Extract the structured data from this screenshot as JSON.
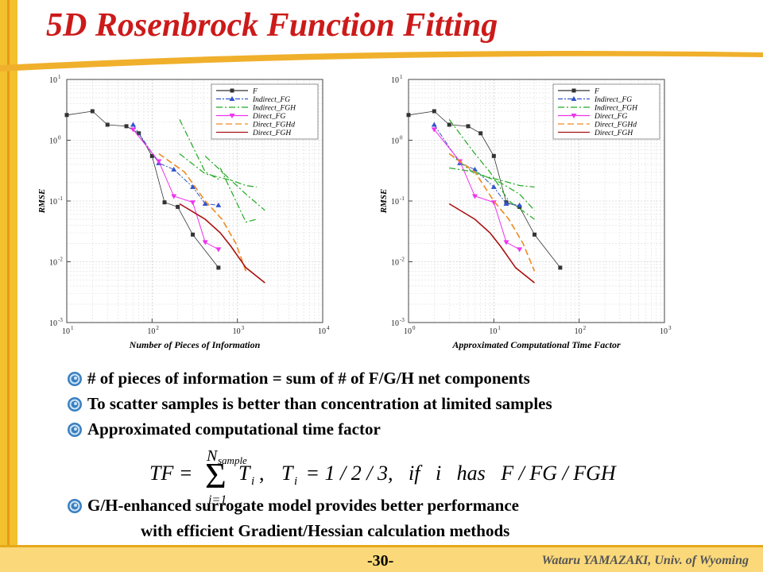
{
  "slide": {
    "title": "5D Rosenbrock Function Fitting",
    "page_number": "-30-",
    "author": "Wataru YAMAZAKI, Univ. of Wyoming",
    "bullets": [
      "# of pieces of information = sum of # of F/G/H net components",
      "To scatter samples is better than concentration at limited samples",
      "Approximated computational time factor",
      "G/H-enhanced surrogate model provides better performance"
    ],
    "bullet_continuation": "with efficient Gradient/Hessian calculation methods",
    "formula": {
      "lhs": "TF =",
      "sum_upper": "N",
      "sum_upper_sub": "sample",
      "sum_lower": "i=1",
      "term": "T",
      "term_sub": "i",
      "rest": "T",
      "rest_sub": "i",
      "rest_text": " = 1 / 2 / 3,   if   i   has   F / FG / FGH"
    },
    "colors": {
      "title": "#cc1a1a",
      "accent_bar": "#e8a317",
      "bullet_icon": "#3a7fc1"
    }
  },
  "chart_data": [
    {
      "type": "line",
      "xscale": "log",
      "yscale": "log",
      "xlim": [
        10,
        10000
      ],
      "ylim": [
        0.001,
        10
      ],
      "xlabel": "Number of Pieces of Information",
      "ylabel": "RMSE",
      "xticks": [
        {
          "v": 10,
          "m": "1"
        },
        {
          "v": 100,
          "m": "2"
        },
        {
          "v": 1000,
          "m": "3"
        },
        {
          "v": 10000,
          "m": "4"
        }
      ],
      "yticks": [
        {
          "v": 0.001,
          "m": "-3"
        },
        {
          "v": 0.01,
          "m": "-2"
        },
        {
          "v": 0.1,
          "m": "-1"
        },
        {
          "v": 1,
          "m": "0"
        },
        {
          "v": 10,
          "m": "1"
        }
      ],
      "legend_position": "top-right",
      "series": [
        {
          "name": "F",
          "color": "#333333",
          "dash": "none",
          "marker": "square",
          "width": 0.8,
          "x": [
            10,
            20,
            30,
            50,
            70,
            100,
            140,
            200,
            300,
            600
          ],
          "y": [
            2.6,
            3.0,
            1.8,
            1.7,
            1.3,
            0.55,
            0.095,
            0.08,
            0.028,
            0.008
          ]
        },
        {
          "name": "Indirect_FG",
          "color": "#3355cc",
          "dash": "6,2,2,2",
          "marker": "triangle-up",
          "width": 1.0,
          "x": [
            60,
            120,
            180,
            300,
            420,
            600
          ],
          "y": [
            1.8,
            0.42,
            0.33,
            0.17,
            0.09,
            0.085
          ]
        },
        {
          "name": "Indirect_FGH",
          "color": "#22aa22",
          "dash": "8,3,2,3",
          "marker": "none",
          "width": 1.2,
          "x": [
            210,
            420,
            630
          ],
          "y": [
            2.2,
            0.3,
            0.22
          ]
        },
        {
          "name": "Indirect_FGH",
          "color": "#22aa22",
          "dash": "8,3,2,3",
          "marker": "none",
          "width": 1.2,
          "x": [
            210,
            420,
            840,
            1260,
            1680
          ],
          "y": [
            0.6,
            0.28,
            0.22,
            0.18,
            0.17
          ]
        },
        {
          "name": "Indirect_FGH",
          "color": "#22aa22",
          "dash": "8,3,2,3",
          "marker": "none",
          "width": 1.2,
          "x": [
            420,
            840,
            1260,
            2100
          ],
          "y": [
            0.55,
            0.22,
            0.13,
            0.07
          ]
        },
        {
          "name": "Indirect_FGH",
          "color": "#22aa22",
          "dash": "8,3,2,3",
          "marker": "none",
          "width": 1.2,
          "x": [
            630,
            1260,
            1680
          ],
          "y": [
            0.35,
            0.045,
            0.05
          ]
        },
        {
          "name": "Direct_FG",
          "color": "#ee33ee",
          "dash": "none",
          "marker": "triangle-down",
          "width": 1.0,
          "x": [
            60,
            120,
            180,
            300,
            420,
            600
          ],
          "y": [
            1.5,
            0.45,
            0.12,
            0.095,
            0.021,
            0.016
          ]
        },
        {
          "name": "Direct_FGHd",
          "color": "#ee8a22",
          "dash": "8,4",
          "marker": "none",
          "width": 1.6,
          "x": [
            120,
            240,
            420,
            660,
            960,
            1260
          ],
          "y": [
            0.6,
            0.3,
            0.1,
            0.05,
            0.02,
            0.007
          ]
        },
        {
          "name": "Direct_FGH",
          "color": "#aa1111",
          "dash": "none",
          "marker": "none",
          "width": 1.6,
          "x": [
            210,
            420,
            630,
            840,
            1260,
            2100
          ],
          "y": [
            0.09,
            0.05,
            0.03,
            0.018,
            0.008,
            0.0045
          ]
        }
      ],
      "legend": [
        {
          "label": "F",
          "color": "#333333",
          "dash": "none",
          "marker": "square"
        },
        {
          "label": "Indirect_FG",
          "color": "#3355cc",
          "dash": "6,2,2,2",
          "marker": "triangle-up"
        },
        {
          "label": "Indirect_FGH",
          "color": "#22aa22",
          "dash": "8,3,2,3",
          "marker": "none"
        },
        {
          "label": "Direct_FG",
          "color": "#ee33ee",
          "dash": "none",
          "marker": "triangle-down"
        },
        {
          "label": "Direct_FGHd",
          "color": "#ee8a22",
          "dash": "8,4",
          "marker": "none"
        },
        {
          "label": "Direct_FGH",
          "color": "#aa1111",
          "dash": "none",
          "marker": "none"
        }
      ]
    },
    {
      "type": "line",
      "xscale": "log",
      "yscale": "log",
      "xlim": [
        1,
        1000
      ],
      "ylim": [
        0.001,
        10
      ],
      "xlabel": "Approximated Computational Time Factor",
      "ylabel": "RMSE",
      "xticks": [
        {
          "v": 1,
          "m": "0"
        },
        {
          "v": 10,
          "m": "1"
        },
        {
          "v": 100,
          "m": "2"
        },
        {
          "v": 1000,
          "m": "3"
        }
      ],
      "yticks": [
        {
          "v": 0.001,
          "m": "-3"
        },
        {
          "v": 0.01,
          "m": "-2"
        },
        {
          "v": 0.1,
          "m": "-1"
        },
        {
          "v": 1,
          "m": "0"
        },
        {
          "v": 10,
          "m": "1"
        }
      ],
      "legend_position": "top-right",
      "series": [
        {
          "name": "F",
          "color": "#333333",
          "dash": "none",
          "marker": "square",
          "width": 0.8,
          "x": [
            1,
            2,
            3,
            5,
            7,
            10,
            14,
            20,
            30,
            60
          ],
          "y": [
            2.6,
            3.0,
            1.8,
            1.7,
            1.3,
            0.55,
            0.095,
            0.08,
            0.028,
            0.008
          ]
        },
        {
          "name": "Indirect_FG",
          "color": "#3355cc",
          "dash": "6,2,2,2",
          "marker": "triangle-up",
          "width": 1.0,
          "x": [
            2,
            4,
            6,
            10,
            14,
            20
          ],
          "y": [
            1.8,
            0.42,
            0.33,
            0.17,
            0.09,
            0.085
          ]
        },
        {
          "name": "Indirect_FGH",
          "color": "#22aa22",
          "dash": "8,3,2,3",
          "marker": "none",
          "width": 1.2,
          "x": [
            3,
            6,
            9,
            15,
            30
          ],
          "y": [
            2.2,
            0.6,
            0.3,
            0.1,
            0.05
          ]
        },
        {
          "name": "Indirect_FGH",
          "color": "#22aa22",
          "dash": "8,3,2,3",
          "marker": "none",
          "width": 1.2,
          "x": [
            3,
            6,
            12,
            20,
            30
          ],
          "y": [
            0.6,
            0.28,
            0.22,
            0.18,
            0.17
          ]
        },
        {
          "name": "Indirect_FGH",
          "color": "#22aa22",
          "dash": "8,3,2,3",
          "marker": "none",
          "width": 1.2,
          "x": [
            3,
            6,
            12,
            20,
            30
          ],
          "y": [
            0.35,
            0.3,
            0.2,
            0.13,
            0.07
          ]
        },
        {
          "name": "Direct_FG",
          "color": "#ee33ee",
          "dash": "none",
          "marker": "triangle-down",
          "width": 1.0,
          "x": [
            2,
            4,
            6,
            10,
            14,
            20
          ],
          "y": [
            1.5,
            0.45,
            0.12,
            0.095,
            0.021,
            0.016
          ]
        },
        {
          "name": "Direct_FGHd",
          "color": "#ee8a22",
          "dash": "8,4",
          "marker": "none",
          "width": 1.6,
          "x": [
            3,
            6,
            10,
            15,
            22,
            30
          ],
          "y": [
            0.6,
            0.3,
            0.1,
            0.05,
            0.02,
            0.007
          ]
        },
        {
          "name": "Direct_FGH",
          "color": "#aa1111",
          "dash": "none",
          "marker": "none",
          "width": 1.6,
          "x": [
            3,
            6,
            9,
            12,
            18,
            30
          ],
          "y": [
            0.09,
            0.05,
            0.03,
            0.018,
            0.008,
            0.0045
          ]
        }
      ],
      "legend": [
        {
          "label": "F",
          "color": "#333333",
          "dash": "none",
          "marker": "square"
        },
        {
          "label": "Indirect_FG",
          "color": "#3355cc",
          "dash": "6,2,2,2",
          "marker": "triangle-up"
        },
        {
          "label": "Indirect_FGH",
          "color": "#22aa22",
          "dash": "8,3,2,3",
          "marker": "none"
        },
        {
          "label": "Direct_FG",
          "color": "#ee33ee",
          "dash": "none",
          "marker": "triangle-down"
        },
        {
          "label": "Direct_FGHd",
          "color": "#ee8a22",
          "dash": "8,4",
          "marker": "none"
        },
        {
          "label": "Direct_FGH",
          "color": "#aa1111",
          "dash": "none",
          "marker": "none"
        }
      ]
    }
  ]
}
